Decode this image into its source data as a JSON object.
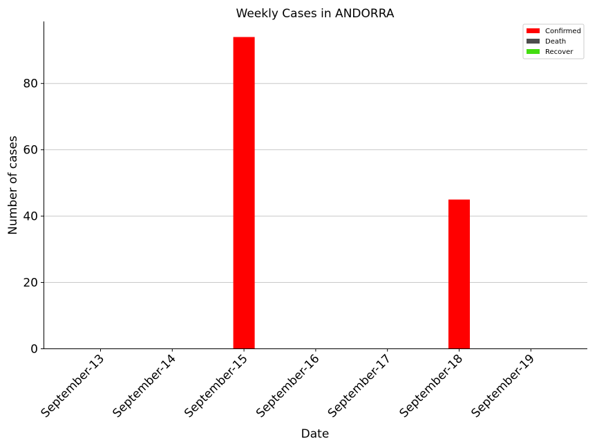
{
  "chart_data": {
    "type": "bar",
    "title": "Weekly Cases in ANDORRA",
    "xlabel": "Date",
    "ylabel": "Number of cases",
    "categories": [
      "September-13",
      "September-14",
      "September-15",
      "September-16",
      "September-17",
      "September-18",
      "September-19"
    ],
    "series": [
      {
        "name": "Confirmed",
        "color": "#ff0000",
        "values": [
          0,
          0,
          94,
          0,
          0,
          45,
          0
        ]
      },
      {
        "name": "Death",
        "color": "#4d4d4d",
        "values": [
          0,
          0,
          0,
          0,
          0,
          0,
          0
        ]
      },
      {
        "name": "Recover",
        "color": "#44dd11",
        "values": [
          0,
          0,
          0,
          0,
          0,
          0,
          0
        ]
      }
    ],
    "yticks": [
      0,
      20,
      40,
      60,
      80
    ],
    "ylim": [
      0,
      98.7
    ],
    "grid": "horizontal",
    "legend_position": "top-right"
  }
}
